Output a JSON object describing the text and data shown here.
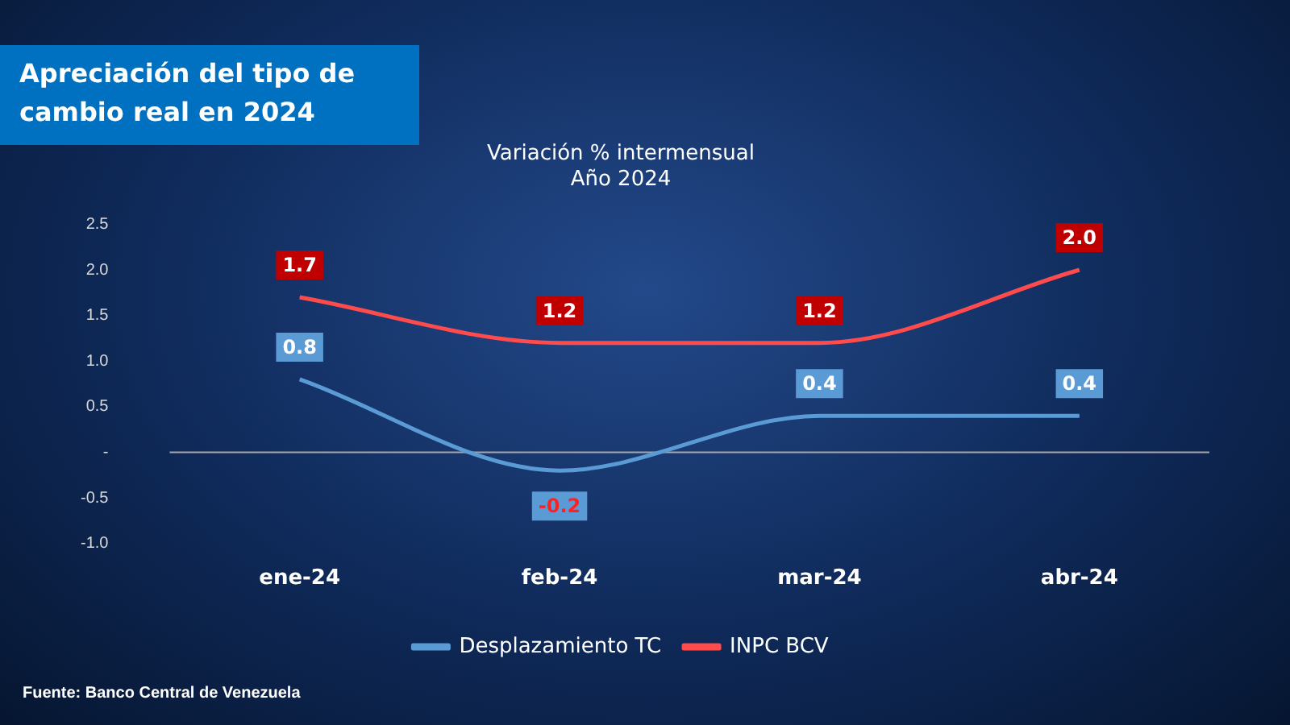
{
  "chart_data": {
    "type": "line",
    "title": "Apreciación del tipo de cambio real en 2024",
    "subtitle": "Variación % intermensual\nAño 2024",
    "categories": [
      "ene-24",
      "feb-24",
      "mar-24",
      "abr-24"
    ],
    "series": [
      {
        "name": "Desplazamiento TC",
        "color": "#5b9bd5",
        "values": [
          0.8,
          -0.2,
          0.4,
          0.4
        ],
        "value_labels": [
          "0.8",
          "-0.2",
          "0.4",
          "0.4"
        ]
      },
      {
        "name": "INPC BCV",
        "color": "#ff4b4b",
        "values": [
          1.7,
          1.2,
          1.2,
          2.0
        ],
        "value_labels": [
          "1.7",
          "1.2",
          "1.2",
          "2.0"
        ]
      }
    ],
    "ylim": [
      -1,
      2.5
    ],
    "yticks": [
      {
        "value": -1,
        "label": "-1.0"
      },
      -0.5,
      {
        "value": 0,
        "label": "-"
      },
      0.5,
      {
        "value": 1,
        "label": "1.0"
      },
      1.5,
      {
        "value": 2,
        "label": "2.0"
      },
      2.5
    ],
    "ref_lines": [
      {
        "axis": "y",
        "value": 0,
        "color": "#a6a6a6"
      }
    ],
    "grid": false,
    "legend": "bottom",
    "marker": "none",
    "line_style": "solid",
    "annotations": [
      "Fuente: Banco Central de Venezuela"
    ]
  }
}
